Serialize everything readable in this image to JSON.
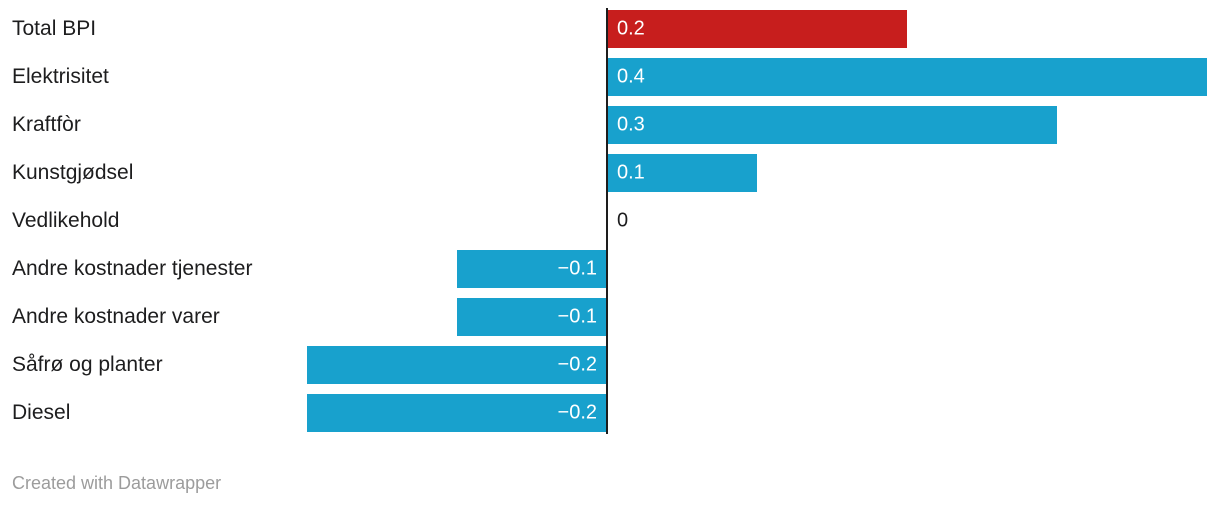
{
  "chart_data": {
    "type": "bar",
    "orientation": "horizontal",
    "title": "",
    "xlabel": "",
    "ylabel": "",
    "categories": [
      "Total BPI",
      "Elektrisitet",
      "Kraftfòr",
      "Kunstgjødsel",
      "Vedlikehold",
      "Andre kostnader tjenester",
      "Andre kostnader varer",
      "Såfrø og planter",
      "Diesel"
    ],
    "values": [
      0.2,
      0.4,
      0.3,
      0.1,
      0,
      -0.1,
      -0.1,
      -0.2,
      -0.2
    ],
    "value_labels": [
      "0.2",
      "0.4",
      "0.3",
      "0.1",
      "0",
      "−0.1",
      "−0.1",
      "−0.2",
      "−0.2"
    ],
    "colors": [
      "#c71e1d",
      "#18a1cd",
      "#18a1cd",
      "#18a1cd",
      "#18a1cd",
      "#18a1cd",
      "#18a1cd",
      "#18a1cd",
      "#18a1cd"
    ],
    "xlim": [
      -0.2,
      0.4
    ],
    "grid": false,
    "legend": null,
    "zero_axis_line": true
  },
  "palette": {
    "highlight_red": "#c71e1d",
    "series_blue": "#18a1cd",
    "axis_line": "#1d1d1d",
    "category_text": "#1d1d1e",
    "value_text_on_bar": "#ffffff",
    "credit_text": "#9c9c9c"
  },
  "footer": {
    "credit": "Created with Datawrapper"
  }
}
